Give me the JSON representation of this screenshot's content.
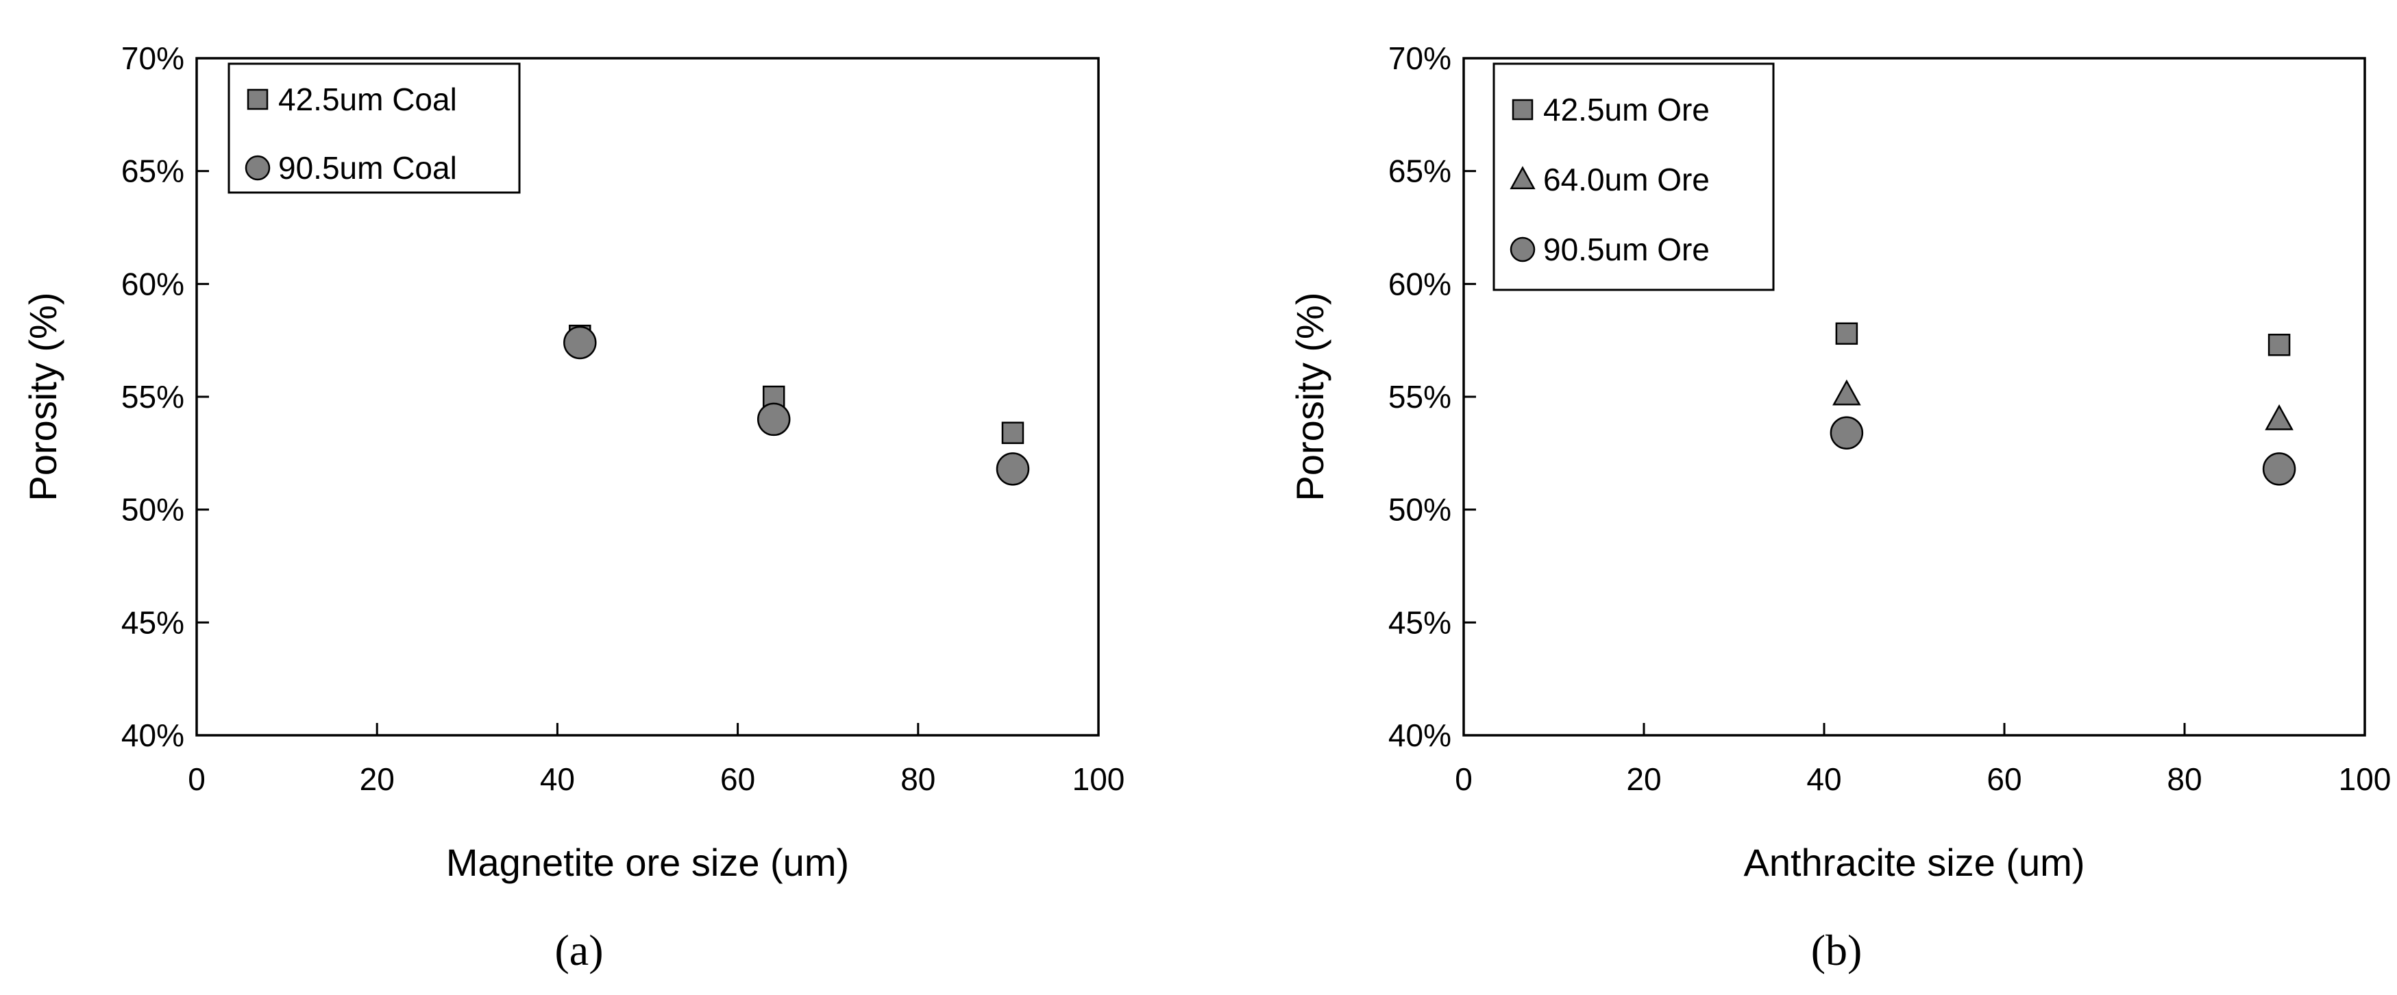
{
  "chart_data": [
    {
      "type": "scatter",
      "panel_label": "(a)",
      "xlabel": "Magnetite ore size (um)",
      "ylabel": "Porosity (%)",
      "xlim": [
        0,
        100
      ],
      "ylim": [
        40,
        70
      ],
      "x_ticks": [
        "0",
        "20",
        "40",
        "60",
        "80",
        "100"
      ],
      "y_ticks": [
        "40%",
        "45%",
        "50%",
        "55%",
        "60%",
        "65%",
        "70%"
      ],
      "grid": false,
      "legend_position": "top-left",
      "series": [
        {
          "name": "42.5um Coal",
          "marker": "square",
          "color": "#808080",
          "x": [
            42.5,
            64.0,
            90.5
          ],
          "y": [
            57.7,
            55.0,
            53.4
          ]
        },
        {
          "name": "90.5um Coal",
          "marker": "circle",
          "color": "#808080",
          "x": [
            42.5,
            64.0,
            90.5
          ],
          "y": [
            57.4,
            54.0,
            51.8
          ]
        }
      ]
    },
    {
      "type": "scatter",
      "panel_label": "(b)",
      "xlabel": "Anthracite size (um)",
      "ylabel": "Porosity (%)",
      "xlim": [
        0,
        100
      ],
      "ylim": [
        40,
        70
      ],
      "x_ticks": [
        "0",
        "20",
        "40",
        "60",
        "80",
        "100"
      ],
      "y_ticks": [
        "40%",
        "45%",
        "50%",
        "55%",
        "60%",
        "65%",
        "70%"
      ],
      "grid": false,
      "legend_position": "top-left",
      "series": [
        {
          "name": "42.5um Ore",
          "marker": "square",
          "color": "#808080",
          "x": [
            42.5,
            90.5
          ],
          "y": [
            57.8,
            57.3
          ]
        },
        {
          "name": "64.0um Ore",
          "marker": "triangle",
          "color": "#808080",
          "x": [
            42.5,
            90.5
          ],
          "y": [
            55.1,
            54.0
          ]
        },
        {
          "name": "90.5um Ore",
          "marker": "circle",
          "color": "#808080",
          "x": [
            42.5,
            90.5
          ],
          "y": [
            53.4,
            51.8
          ]
        }
      ]
    }
  ]
}
